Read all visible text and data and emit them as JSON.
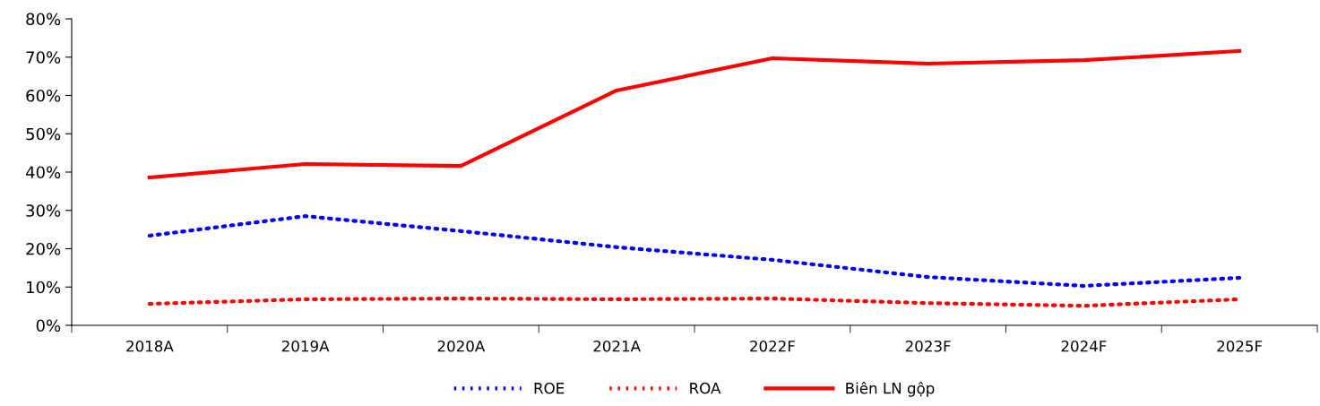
{
  "chart_data": {
    "type": "line",
    "categories": [
      "2018A",
      "2019A",
      "2020A",
      "2021A",
      "2022F",
      "2023F",
      "2024F",
      "2025F"
    ],
    "series": [
      {
        "name": "ROE",
        "color": "#0000ff",
        "line_style": "dotted",
        "values": [
          23.4,
          28.5,
          24.6,
          20.4,
          17.1,
          12.6,
          10.3,
          12.4
        ]
      },
      {
        "name": "ROA",
        "color": "#ff0000",
        "line_style": "dotted",
        "values": [
          5.6,
          6.8,
          7.0,
          6.8,
          7.0,
          5.8,
          5.1,
          6.8
        ]
      },
      {
        "name": "Biên LN gộp",
        "color": "#ff0000",
        "line_style": "solid",
        "values": [
          38.6,
          42.1,
          41.6,
          61.3,
          69.7,
          68.3,
          69.2,
          71.6
        ]
      }
    ],
    "ylim": [
      0,
      80
    ],
    "yticks": [
      {
        "value": 0,
        "label": "0%"
      },
      {
        "value": 10,
        "label": "10%"
      },
      {
        "value": 20,
        "label": "20%"
      },
      {
        "value": 30,
        "label": "30%"
      },
      {
        "value": 40,
        "label": "40%"
      },
      {
        "value": 50,
        "label": "50%"
      },
      {
        "value": 60,
        "label": "60%"
      },
      {
        "value": 70,
        "label": "70%"
      },
      {
        "value": 80,
        "label": "80%"
      }
    ],
    "grid": false,
    "legend": "bottom",
    "marker": "none"
  }
}
